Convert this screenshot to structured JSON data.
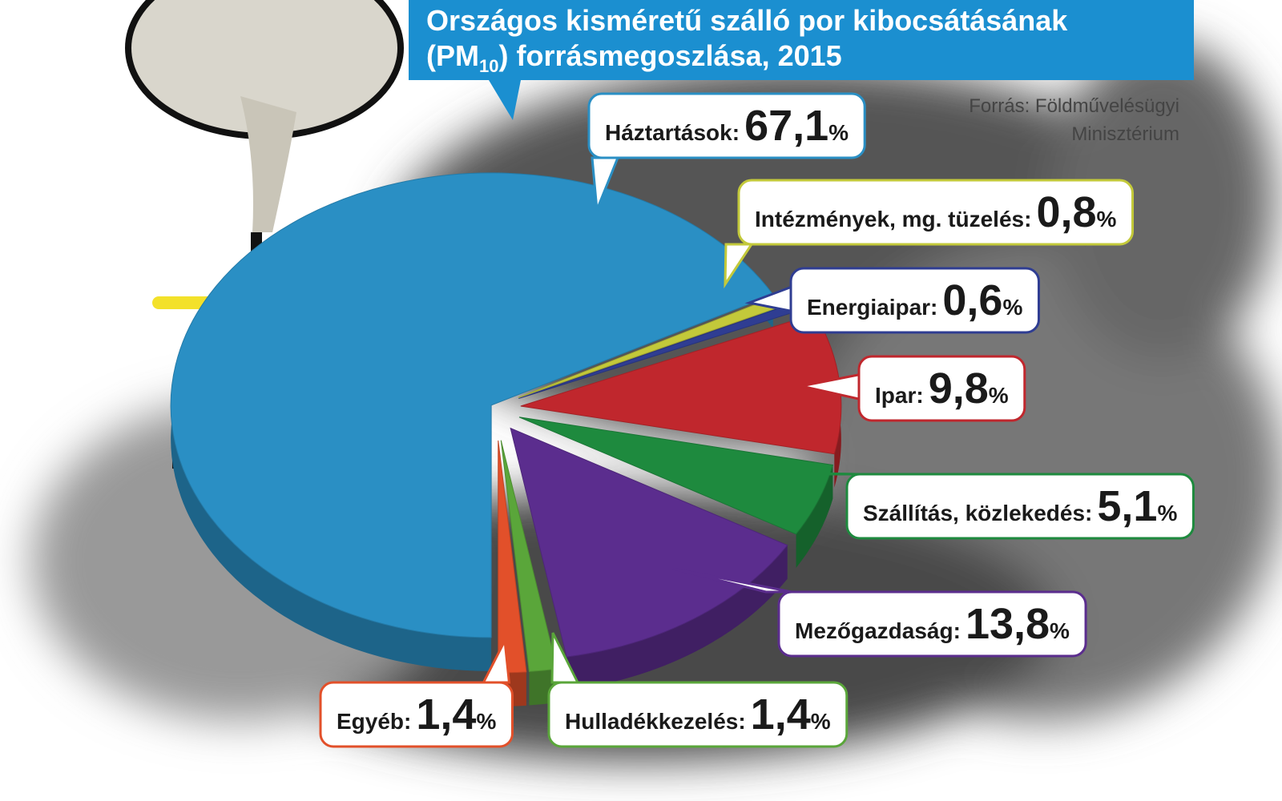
{
  "chart_data": {
    "type": "pie",
    "title": {
      "line1": "Országos kisméretű szálló por kibocsátásának",
      "pm": "(PM",
      "sub": "10",
      "rest": ") forrásmegoszlása, 2015"
    },
    "source": [
      "Forrás: Földművelésügyi",
      "Minisztérium"
    ],
    "unit": "%",
    "categories": [
      "Háztartások:",
      "Intézmények, mg. tüzelés:",
      "Energiaipar:",
      "Ipar:",
      "Szállítás, közlekedés:",
      "Mezőgazdaság:",
      "Hulladékkezelés:",
      "Egyéb:"
    ],
    "values": [
      67.1,
      0.8,
      0.6,
      9.8,
      5.1,
      13.8,
      1.4,
      1.4
    ],
    "value_labels": [
      "67,1",
      "0,8",
      "0,6",
      "9,8",
      "5,1",
      "13,8",
      "1,4",
      "1,4"
    ],
    "colors": [
      "#2a8fc4",
      "#c3c93a",
      "#2f3d92",
      "#c0272d",
      "#1e8a3e",
      "#5b2d8e",
      "#5aa63a",
      "#e2502a"
    ]
  }
}
